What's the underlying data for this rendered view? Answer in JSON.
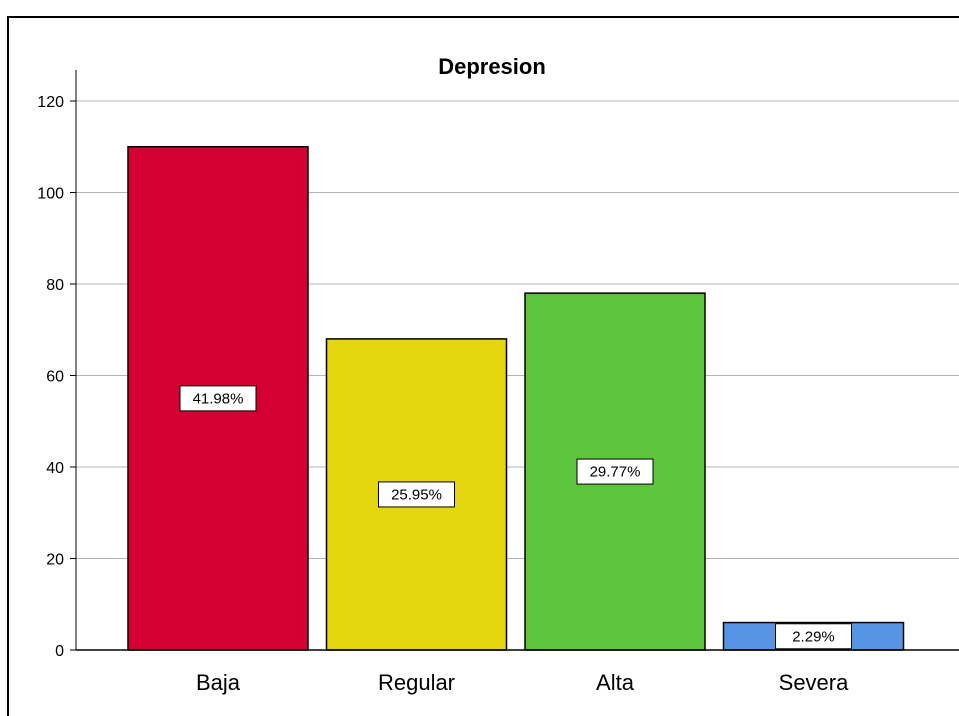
{
  "chart_data": {
    "type": "bar",
    "title": "Depresion",
    "categories": [
      "Baja",
      "Regular",
      "Alta",
      "Severa"
    ],
    "values": [
      110,
      68,
      78,
      6
    ],
    "percent_labels": [
      "41.98%",
      "25.95%",
      "29.77%",
      "2.29%"
    ],
    "colors": [
      "#d50032",
      "#e3d60f",
      "#5ec43c",
      "#5595e3"
    ],
    "xlabel": "",
    "ylabel": "",
    "ylim": [
      0,
      120
    ],
    "yticks": [
      0,
      20,
      40,
      60,
      80,
      100,
      120
    ],
    "grid": true,
    "legend": "none"
  }
}
